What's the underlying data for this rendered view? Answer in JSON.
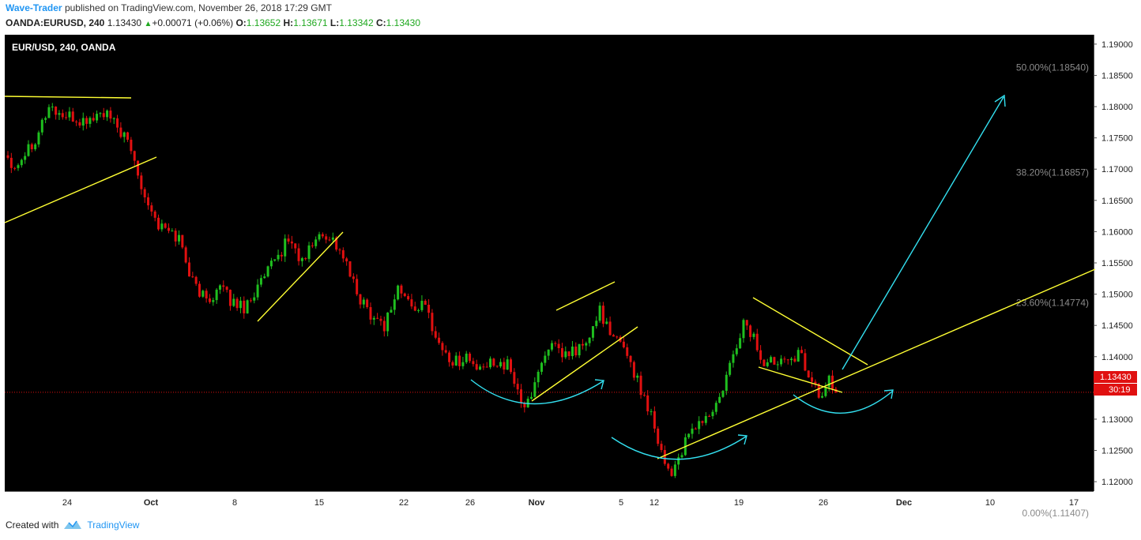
{
  "header": {
    "author": "Wave-Trader",
    "published_text": "published on TradingView.com, November 26, 2018 17:29 GMT",
    "symbol_interval": "OANDA:EURUSD, 240",
    "last": "1.13430",
    "change": "+0.00071 (+0.06%)",
    "o_label": "O:",
    "o_value": "1.13652",
    "h_label": "H:",
    "h_value": "1.13671",
    "l_label": "L:",
    "l_value": "1.13342",
    "c_label": "C:",
    "c_value": "1.13430"
  },
  "chart": {
    "legend": "EUR/USD, 240, OANDA",
    "current_price_label": "1.13430",
    "countdown_label": "30:19",
    "colors": {
      "background": "#000000",
      "up": "#1fbf1f",
      "down": "#e01010",
      "trendline": "#ffff33",
      "projection": "#33e0f0",
      "price_line": "#e01010",
      "fib_text": "#8a8a8a"
    }
  },
  "chart_data": {
    "type": "candlestick",
    "symbol": "EUR/USD",
    "interval": "240",
    "ylim": [
      1.1185,
      1.1915
    ],
    "y_ticks": [
      "1.19000",
      "1.18500",
      "1.18000",
      "1.17500",
      "1.17000",
      "1.16500",
      "1.16000",
      "1.15500",
      "1.15000",
      "1.14500",
      "1.14000",
      "1.13500",
      "1.13000",
      "1.12500",
      "1.12000"
    ],
    "x_ticks": [
      "24",
      "Oct",
      "8",
      "15",
      "22",
      "26",
      "Nov",
      "5",
      "12",
      "19",
      "26",
      "Dec",
      "10",
      "17"
    ],
    "current_price": 1.1343,
    "fib_levels": [
      {
        "label": "50.00%(1.18540)",
        "price": 1.1854
      },
      {
        "label": "38.20%(1.16857)",
        "price": 1.16857
      },
      {
        "label": "23.60%(1.14774)",
        "price": 1.14774
      },
      {
        "label": "0.00%(1.11407)",
        "price": 1.11407
      }
    ],
    "price_path": [
      [
        0,
        1.172
      ],
      [
        2,
        1.1705
      ],
      [
        8,
        1.175
      ],
      [
        12,
        1.18
      ],
      [
        16,
        1.1785
      ],
      [
        22,
        1.1775
      ],
      [
        28,
        1.179
      ],
      [
        33,
        1.176
      ],
      [
        36,
        1.173
      ],
      [
        40,
        1.166
      ],
      [
        44,
        1.161
      ],
      [
        50,
        1.159
      ],
      [
        54,
        1.152
      ],
      [
        58,
        1.149
      ],
      [
        62,
        1.151
      ],
      [
        65,
        1.149
      ],
      [
        69,
        1.148
      ],
      [
        73,
        1.151
      ],
      [
        79,
        1.156
      ],
      [
        82,
        1.159
      ],
      [
        86,
        1.155
      ],
      [
        90,
        1.159
      ],
      [
        94,
        1.1595
      ],
      [
        98,
        1.156
      ],
      [
        102,
        1.15
      ],
      [
        106,
        1.147
      ],
      [
        110,
        1.145
      ],
      [
        114,
        1.151
      ],
      [
        118,
        1.148
      ],
      [
        122,
        1.148
      ],
      [
        126,
        1.142
      ],
      [
        130,
        1.139
      ],
      [
        134,
        1.14
      ],
      [
        138,
        1.1375
      ],
      [
        142,
        1.1395
      ],
      [
        146,
        1.1385
      ],
      [
        149,
        1.135
      ],
      [
        151,
        1.131
      ],
      [
        154,
        1.136
      ],
      [
        158,
        1.142
      ],
      [
        162,
        1.14
      ],
      [
        166,
        1.141
      ],
      [
        170,
        1.1425
      ],
      [
        173,
        1.148
      ],
      [
        176,
        1.143
      ],
      [
        180,
        1.142
      ],
      [
        184,
        1.136
      ],
      [
        188,
        1.131
      ],
      [
        190,
        1.127
      ],
      [
        192,
        1.123
      ],
      [
        194,
        1.1215
      ],
      [
        197,
        1.125
      ],
      [
        201,
        1.129
      ],
      [
        205,
        1.1305
      ],
      [
        208,
        1.133
      ],
      [
        212,
        1.14
      ],
      [
        215,
        1.1455
      ],
      [
        218,
        1.143
      ],
      [
        221,
        1.1385
      ],
      [
        224,
        1.1395
      ],
      [
        228,
        1.1405
      ],
      [
        232,
        1.14
      ],
      [
        235,
        1.136
      ],
      [
        238,
        1.133
      ],
      [
        240,
        1.137
      ],
      [
        242,
        1.1343
      ]
    ]
  }
}
